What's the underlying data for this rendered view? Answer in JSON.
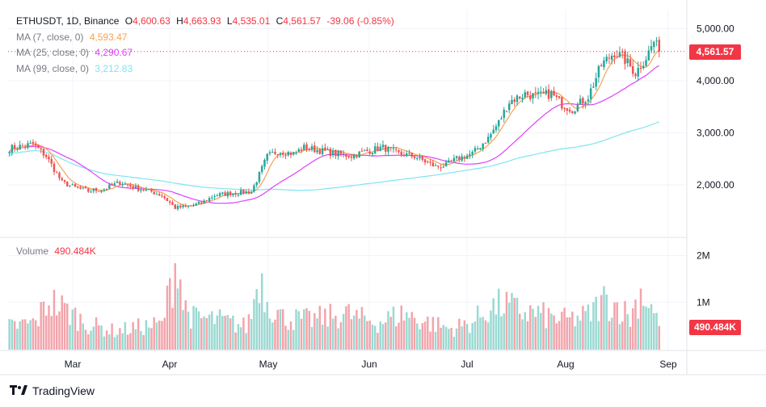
{
  "legend": {
    "symbol": "ETHUSDT, 1D, Binance",
    "open_label": "O",
    "open": "4,600.63",
    "high_label": "H",
    "high": "4,663.93",
    "low_label": "L",
    "low": "4,535.01",
    "close_label": "C",
    "close": "4,561.57",
    "change": "-39.06 (-0.85%)",
    "ma7_label": "MA (7, close, 0)",
    "ma7_value": "4,593.47",
    "ma25_label": "MA (25, close, 0)",
    "ma25_value": "4,290.67",
    "ma99_label": "MA (99, close, 0)",
    "ma99_value": "3,212.83",
    "volume_label": "Volume",
    "volume_value": "490.484K"
  },
  "price_tag": "4,561.57",
  "volume_tag": "490.484K",
  "brand": "TradingView",
  "colors": {
    "up": "#26a69a",
    "down": "#ef5350",
    "ma7": "#f7a24f",
    "ma25": "#e040fb",
    "ma99": "#7fe4f0",
    "price_tag": "#f23645"
  },
  "chart_data": {
    "type": "candlestick",
    "x_tick_labels": [
      "Mar",
      "Apr",
      "May",
      "Jun",
      "Jul",
      "Aug",
      "Sep"
    ],
    "y_tick_labels": [
      "5,000.00",
      "4,000.00",
      "3,000.00",
      "2,000.00"
    ],
    "volume_tick_labels": [
      "2M",
      "1M"
    ],
    "price_anchors": [
      [
        0,
        2700
      ],
      [
        6,
        2760
      ],
      [
        9,
        2780
      ],
      [
        14,
        2550
      ],
      [
        20,
        2050
      ],
      [
        25,
        1950
      ],
      [
        30,
        1880
      ],
      [
        36,
        1920
      ],
      [
        42,
        2050
      ],
      [
        48,
        1940
      ],
      [
        54,
        1870
      ],
      [
        58,
        1800
      ],
      [
        63,
        1560
      ],
      [
        68,
        1590
      ],
      [
        73,
        1650
      ],
      [
        78,
        1800
      ],
      [
        84,
        1840
      ],
      [
        92,
        1870
      ],
      [
        95,
        2200
      ],
      [
        98,
        2550
      ],
      [
        102,
        2650
      ],
      [
        108,
        2600
      ],
      [
        112,
        2720
      ],
      [
        118,
        2660
      ],
      [
        124,
        2600
      ],
      [
        130,
        2560
      ],
      [
        136,
        2650
      ],
      [
        142,
        2720
      ],
      [
        148,
        2600
      ],
      [
        154,
        2550
      ],
      [
        158,
        2450
      ],
      [
        162,
        2350
      ],
      [
        166,
        2380
      ],
      [
        170,
        2500
      ],
      [
        176,
        2600
      ],
      [
        182,
        2900
      ],
      [
        186,
        3200
      ],
      [
        190,
        3600
      ],
      [
        196,
        3750
      ],
      [
        200,
        3700
      ],
      [
        206,
        3750
      ],
      [
        210,
        3550
      ],
      [
        214,
        3450
      ],
      [
        220,
        3700
      ],
      [
        225,
        4300
      ],
      [
        230,
        4550
      ],
      [
        234,
        4400
      ],
      [
        238,
        4150
      ],
      [
        242,
        4450
      ],
      [
        245,
        4750
      ],
      [
        247,
        4560
      ]
    ],
    "volume_anchors": [
      [
        0,
        500
      ],
      [
        10,
        600
      ],
      [
        15,
        1100
      ],
      [
        22,
        850
      ],
      [
        30,
        550
      ],
      [
        40,
        400
      ],
      [
        50,
        500
      ],
      [
        58,
        550
      ],
      [
        62,
        1600
      ],
      [
        64,
        2200
      ],
      [
        66,
        1000
      ],
      [
        70,
        700
      ],
      [
        80,
        650
      ],
      [
        90,
        500
      ],
      [
        92,
        800
      ],
      [
        95,
        1700
      ],
      [
        98,
        1100
      ],
      [
        104,
        700
      ],
      [
        112,
        650
      ],
      [
        120,
        700
      ],
      [
        128,
        800
      ],
      [
        132,
        700
      ],
      [
        140,
        600
      ],
      [
        150,
        800
      ],
      [
        156,
        650
      ],
      [
        162,
        550
      ],
      [
        168,
        450
      ],
      [
        176,
        600
      ],
      [
        182,
        900
      ],
      [
        188,
        1000
      ],
      [
        194,
        850
      ],
      [
        200,
        800
      ],
      [
        206,
        700
      ],
      [
        212,
        650
      ],
      [
        220,
        750
      ],
      [
        226,
        1100
      ],
      [
        232,
        950
      ],
      [
        236,
        700
      ],
      [
        240,
        1300
      ],
      [
        244,
        950
      ],
      [
        247,
        490
      ]
    ],
    "last_close": 4561.57,
    "ma7_last": 4593.47,
    "ma25_last": 4290.67,
    "ma99_last": 3212.83,
    "last_volume": 490484
  }
}
